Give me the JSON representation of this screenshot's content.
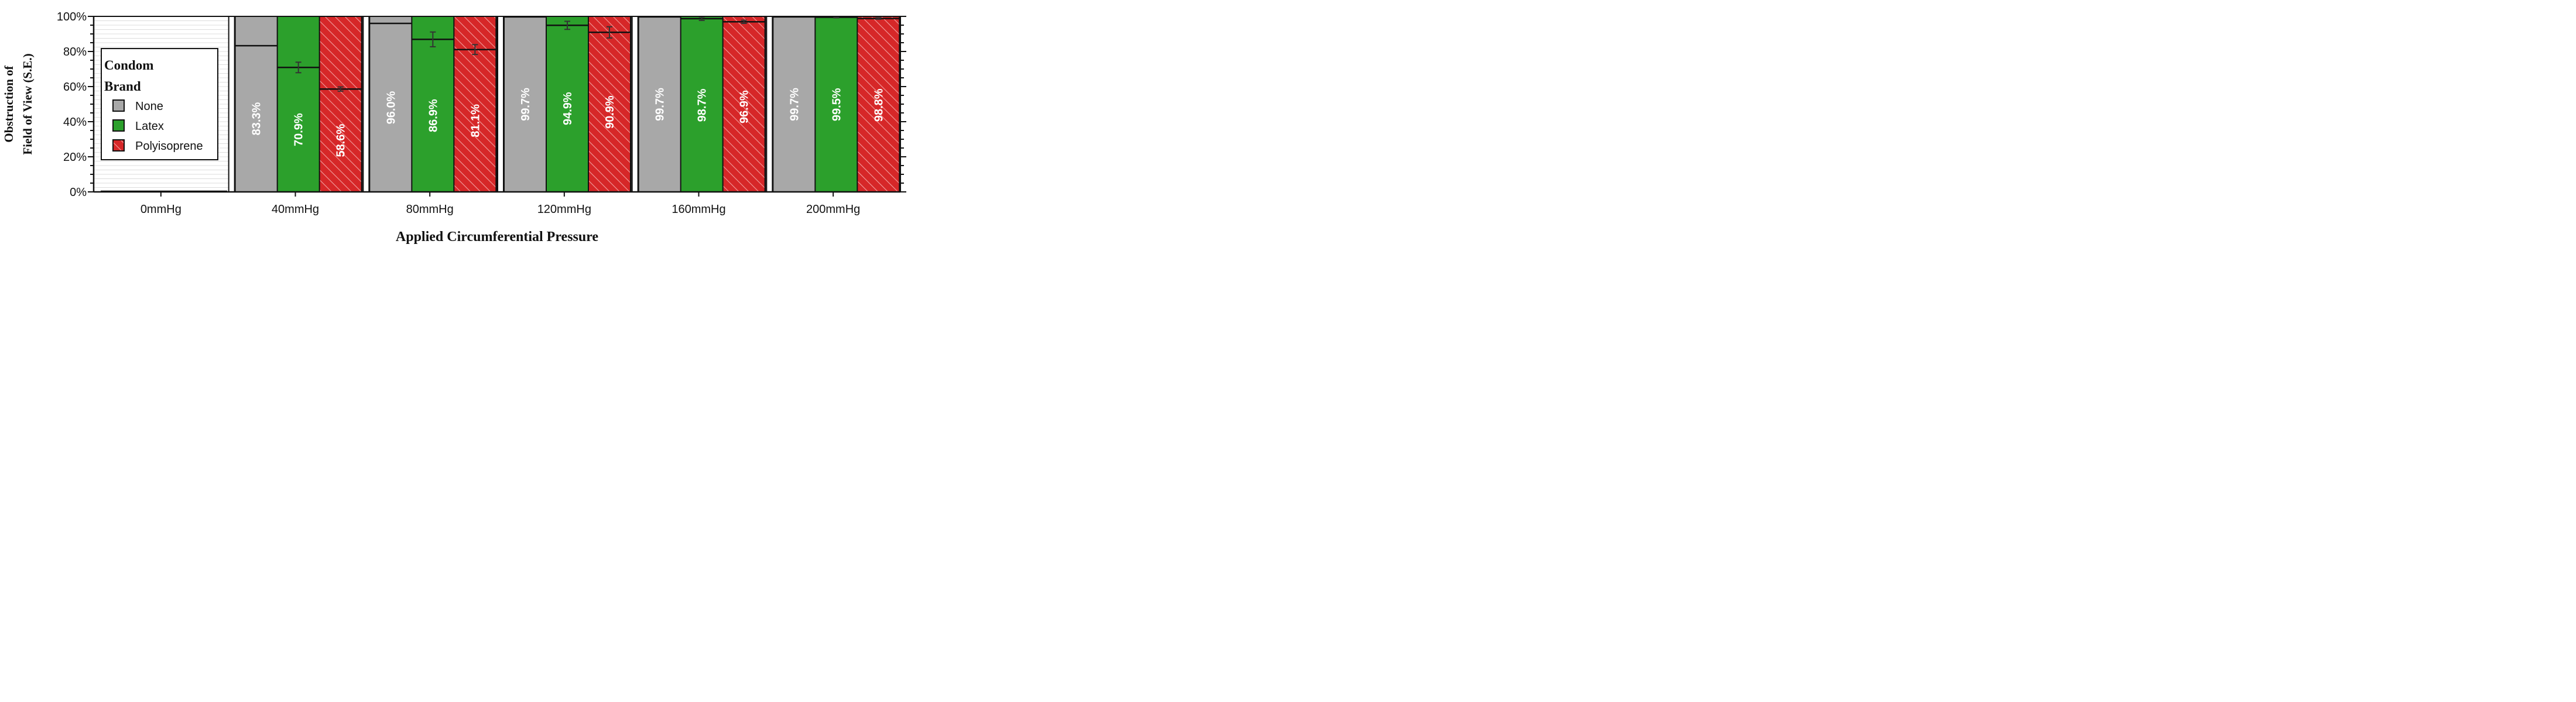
{
  "chart_data": {
    "type": "bar",
    "title": "",
    "xlabel": "Applied Circumferential Pressure",
    "ylabel_lines": [
      "Obstruction of",
      "Field of View (S.E.)"
    ],
    "categories": [
      "0mmHg",
      "40mmHg",
      "80mmHg",
      "120mmHg",
      "160mmHg",
      "200mmHg"
    ],
    "ylim": [
      0,
      100
    ],
    "y_ticks": [
      0,
      20,
      40,
      60,
      80,
      100
    ],
    "y_tick_labels": [
      "0%",
      "20%",
      "40%",
      "60%",
      "80%",
      "100%"
    ],
    "grid": true,
    "legend": {
      "title_lines": [
        "Condom",
        "Brand"
      ],
      "placement": "left"
    },
    "series": [
      {
        "name": "None",
        "color": "#a8a8a8",
        "pattern": "solid",
        "values": [
          0,
          83.3,
          96.0,
          99.7,
          99.7,
          99.7
        ],
        "errors": [
          0,
          0,
          0,
          0,
          0,
          0
        ],
        "labels": [
          "",
          "83.3%",
          "96.0%",
          "99.7%",
          "99.7%",
          "99.7%"
        ]
      },
      {
        "name": "Latex",
        "color": "#2ca02c",
        "pattern": "solid",
        "values": [
          0,
          70.9,
          86.9,
          94.9,
          98.7,
          99.5
        ],
        "errors": [
          0,
          3.0,
          4.2,
          2.3,
          1.0,
          0.3
        ],
        "labels": [
          "",
          "70.9%",
          "86.9%",
          "94.9%",
          "98.7%",
          "99.5%"
        ]
      },
      {
        "name": "Polyisoprene",
        "color": "#d62728",
        "pattern": "hatch",
        "values": [
          0,
          58.6,
          81.1,
          90.9,
          96.9,
          98.8
        ],
        "errors": [
          0,
          1.2,
          2.8,
          3.2,
          0.9,
          0.4
        ],
        "labels": [
          "",
          "58.6%",
          "81.1%",
          "90.9%",
          "96.9%",
          "98.8%"
        ]
      }
    ]
  }
}
